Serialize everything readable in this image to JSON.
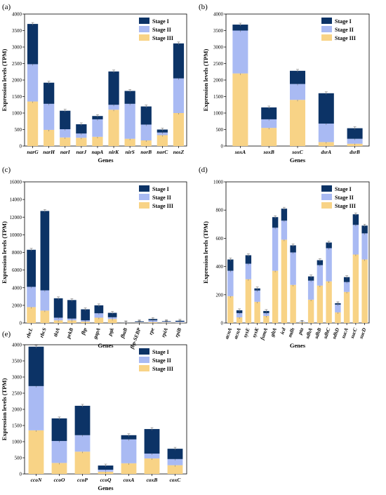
{
  "colors": {
    "stage_I": "#0c3366",
    "stage_II": "#a9baf3",
    "stage_III": "#f8d386"
  },
  "chart_data": [
    {
      "panel": "(a)",
      "type": "bar",
      "stacked": true,
      "xlabel": "Genes",
      "ylabel": "Expression levels (TPM)",
      "ylim": [
        0,
        4000
      ],
      "yticks": [
        "0",
        "500",
        "1000",
        "1500",
        "2000",
        "2500",
        "3000",
        "3500",
        "4000"
      ],
      "legend_position": "top-right",
      "categories": [
        "narG",
        "narH",
        "narI",
        "narJ",
        "napA",
        "nirK",
        "nirS",
        "norB",
        "norC",
        "nosZ"
      ],
      "series": [
        {
          "name": "Stage III",
          "values": [
            1350,
            490,
            260,
            250,
            280,
            1100,
            220,
            170,
            330,
            1000
          ]
        },
        {
          "name": "Stage II",
          "values": [
            1130,
            790,
            250,
            130,
            530,
            150,
            1060,
            480,
            80,
            1050
          ]
        },
        {
          "name": "Stage I",
          "values": [
            1220,
            640,
            560,
            280,
            100,
            1010,
            390,
            550,
            90,
            1060
          ]
        }
      ]
    },
    {
      "panel": "(b)",
      "type": "bar",
      "stacked": true,
      "xlabel": "Genes",
      "ylabel": "",
      "ylim": [
        0,
        4000
      ],
      "yticks": [
        "0",
        "500",
        "1000",
        "1500",
        "2000",
        "2500",
        "3000",
        "3500",
        "4000"
      ],
      "legend_position": "top-right",
      "categories": [
        "soxA",
        "soxB",
        "soxC",
        "dsrA",
        "dsrB"
      ],
      "series": [
        {
          "name": "Stage III",
          "values": [
            2200,
            550,
            1400,
            120,
            70
          ]
        },
        {
          "name": "Stage II",
          "values": [
            1300,
            260,
            480,
            560,
            150
          ]
        },
        {
          "name": "Stage I",
          "values": [
            180,
            360,
            400,
            920,
            320
          ]
        }
      ]
    },
    {
      "panel": "(c)",
      "type": "bar",
      "stacked": true,
      "xlabel": "Genes",
      "ylabel": "Expression levels (TPM)",
      "ylim": [
        0,
        16000
      ],
      "yticks": [
        "0",
        "2000",
        "4000",
        "6000",
        "8000",
        "10000",
        "12000",
        "14000",
        "16000"
      ],
      "legend_position": "top-right",
      "categories": [
        "rbcL",
        "rbcS",
        "tktA",
        "prkB",
        "fbp",
        "gapA",
        "pgk",
        "fbaB",
        "fbp-SEBP",
        "rpe",
        "rpiA",
        "rpiB"
      ],
      "series": [
        {
          "name": "Stage III",
          "values": [
            1800,
            1400,
            300,
            300,
            150,
            600,
            450,
            30,
            50,
            100,
            60,
            50
          ]
        },
        {
          "name": "Stage II",
          "values": [
            2300,
            2300,
            300,
            200,
            150,
            500,
            200,
            20,
            50,
            200,
            80,
            100
          ]
        },
        {
          "name": "Stage I",
          "values": [
            4200,
            9000,
            2200,
            2100,
            1250,
            900,
            500,
            20,
            80,
            150,
            60,
            100
          ]
        }
      ]
    },
    {
      "panel": "(d)",
      "type": "bar",
      "stacked": true,
      "xlabel": "Genes",
      "ylabel": "",
      "ylim": [
        0,
        1000
      ],
      "yticks": [
        "0",
        "200",
        "400",
        "600",
        "800",
        "1000"
      ],
      "legend_position": "top-right",
      "categories": [
        "acnA",
        "acnA",
        "sysE",
        "sysK",
        "fumA",
        "gltA",
        "icd",
        "mdh",
        "pta",
        "sdhA",
        "sdhB",
        "sdhC",
        "sdhD",
        "sucA",
        "sucC",
        "sucD"
      ],
      "series": [
        {
          "name": "Stage III",
          "values": [
            190,
            40,
            310,
            150,
            50,
            370,
            590,
            270,
            5,
            165,
            265,
            295,
            75,
            220,
            485,
            450
          ]
        },
        {
          "name": "Stage II",
          "values": [
            180,
            30,
            110,
            80,
            20,
            305,
            135,
            230,
            2,
            135,
            145,
            235,
            55,
            70,
            210,
            185
          ]
        },
        {
          "name": "Stage I",
          "values": [
            80,
            20,
            60,
            15,
            15,
            75,
            85,
            50,
            1,
            30,
            35,
            40,
            10,
            35,
            75,
            55
          ]
        }
      ]
    },
    {
      "panel": "(e)",
      "type": "bar",
      "stacked": true,
      "xlabel": "Genes",
      "ylabel": "Expression levels (TPM)",
      "ylim": [
        0,
        4000
      ],
      "yticks": [
        "0",
        "500",
        "1000",
        "1500",
        "2000",
        "2500",
        "3000",
        "3500",
        "4000"
      ],
      "legend_position": "top-right",
      "categories": [
        "ccoN",
        "ccoO",
        "ccoP",
        "ccoQ",
        "coxA",
        "coxB",
        "coxC"
      ],
      "series": [
        {
          "name": "Stage III",
          "values": [
            1350,
            340,
            690,
            70,
            330,
            480,
            270
          ]
        },
        {
          "name": "Stage II",
          "values": [
            1370,
            680,
            510,
            60,
            740,
            150,
            190
          ]
        },
        {
          "name": "Stage I",
          "values": [
            1220,
            700,
            910,
            130,
            130,
            760,
            320
          ]
        }
      ]
    }
  ]
}
